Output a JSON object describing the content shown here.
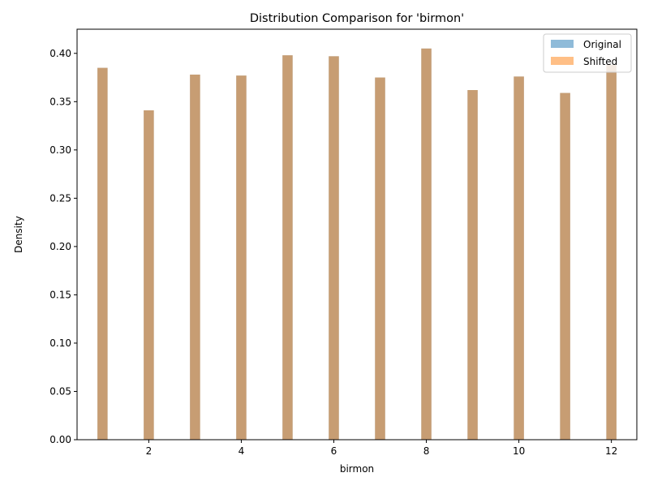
{
  "colors": {
    "original": "#1f77b4",
    "shifted": "#ff7f0e",
    "overlap_appearance": "#c69c6d",
    "axis": "#000000",
    "background": "#ffffff"
  },
  "chart_data": {
    "type": "bar",
    "title": "Distribution Comparison for 'birmon'",
    "xlabel": "birmon",
    "ylabel": "Density",
    "xlim": [
      0.45,
      12.55
    ],
    "ylim": [
      0,
      0.425
    ],
    "x_ticks": [
      2,
      4,
      6,
      8,
      10,
      12
    ],
    "y_ticks": [
      0.0,
      0.05,
      0.1,
      0.15,
      0.2,
      0.25,
      0.3,
      0.35,
      0.4
    ],
    "x_tick_labels": [
      "2",
      "4",
      "6",
      "8",
      "10",
      "12"
    ],
    "y_tick_labels": [
      "0.00",
      "0.05",
      "0.10",
      "0.15",
      "0.20",
      "0.25",
      "0.30",
      "0.35",
      "0.40"
    ],
    "grid": false,
    "legend_position": "top-right",
    "bar_opacity": 0.5,
    "categories": [
      1,
      2,
      3,
      4,
      5,
      6,
      7,
      8,
      9,
      10,
      11,
      12
    ],
    "series": [
      {
        "name": "Original",
        "color": "#1f77b4",
        "values": [
          0.385,
          0.341,
          0.378,
          0.377,
          0.398,
          0.397,
          0.375,
          0.405,
          0.362,
          0.376,
          0.359,
          0.388
        ]
      },
      {
        "name": "Shifted",
        "color": "#ff7f0e",
        "values": [
          0.385,
          0.341,
          0.378,
          0.377,
          0.398,
          0.397,
          0.375,
          0.405,
          0.362,
          0.376,
          0.359,
          0.388
        ]
      }
    ]
  }
}
